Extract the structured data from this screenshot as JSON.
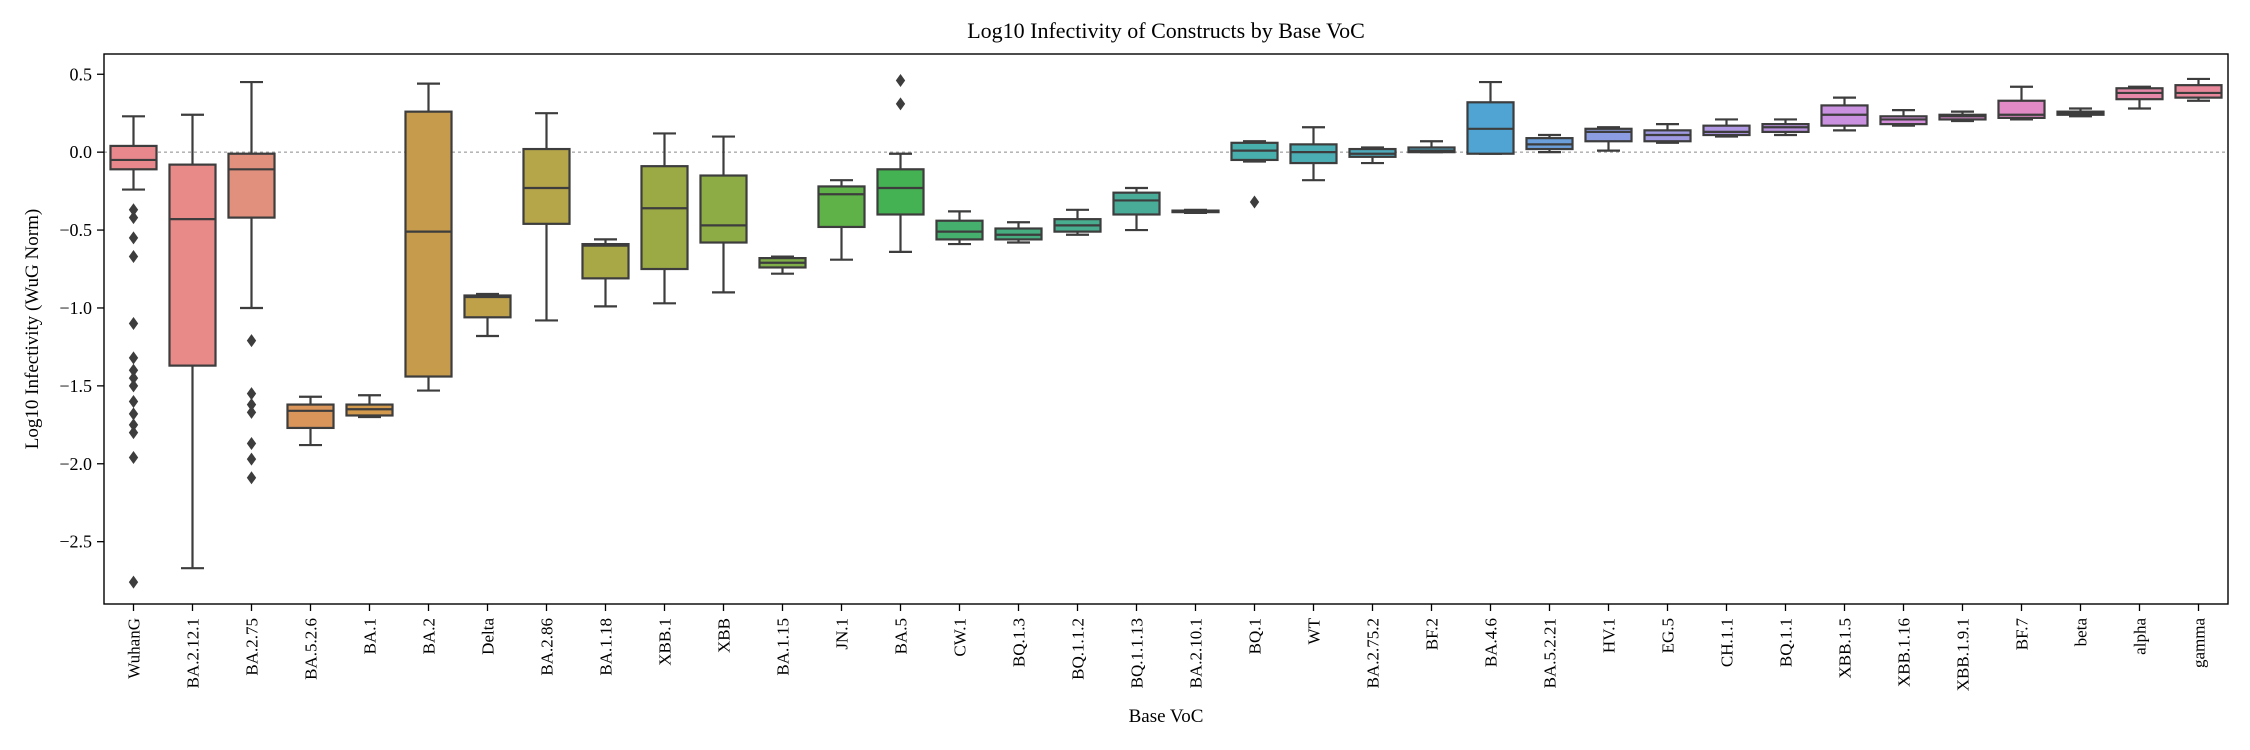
{
  "chart_data": {
    "type": "box",
    "title": "Log10 Infectivity of Constructs by Base VoC",
    "xlabel": "Base VoC",
    "ylabel": "Log10 Infectivity (WuG Norm)",
    "ylim": [
      -2.9,
      0.63
    ],
    "yticks": [
      -2.5,
      -2.0,
      -1.5,
      -1.0,
      -0.5,
      0.0,
      0.5
    ],
    "ytick_labels": [
      "−2.5",
      "−2.0",
      "−1.5",
      "−1.0",
      "−0.5",
      "0.0",
      "0.5"
    ],
    "reference_line_y": 0.0,
    "grid": false,
    "legend": "none",
    "categories": [
      "WuhanG",
      "BA.2.12.1",
      "BA.2.75",
      "BA.5.2.6",
      "BA.1",
      "BA.2",
      "Delta",
      "BA.2.86",
      "BA.1.18",
      "XBB.1",
      "XBB",
      "BA.1.15",
      "JN.1",
      "BA.5",
      "CW.1",
      "BQ.1.3",
      "BQ.1.1.2",
      "BQ.1.1.13",
      "BA.2.10.1",
      "BQ.1",
      "WT",
      "BA.2.75.2",
      "BF.2",
      "BA.4.6",
      "BA.5.2.21",
      "HV.1",
      "EG.5",
      "CH.1.1",
      "BQ.1.1",
      "XBB.1.5",
      "XBB.1.16",
      "XBB.1.9.1",
      "BF.7",
      "beta",
      "alpha",
      "gamma"
    ],
    "boxes": [
      {
        "whislo": -0.24,
        "q1": -0.11,
        "med": -0.05,
        "q3": 0.04,
        "whishi": 0.23,
        "fliers": [
          -0.37,
          -0.42,
          -0.55,
          -0.67,
          -1.1,
          -1.32,
          -1.4,
          -1.45,
          -1.5,
          -1.6,
          -1.68,
          -1.75,
          -1.8,
          -1.96,
          -2.76
        ],
        "color": "#E8878C"
      },
      {
        "whislo": -2.67,
        "q1": -1.37,
        "med": -0.43,
        "q3": -0.08,
        "whishi": 0.24,
        "fliers": [],
        "color": "#E88A88"
      },
      {
        "whislo": -1.0,
        "q1": -0.42,
        "med": -0.11,
        "q3": -0.01,
        "whishi": 0.45,
        "fliers": [
          -1.21,
          -1.55,
          -1.62,
          -1.67,
          -1.87,
          -1.97,
          -2.09
        ],
        "color": "#E0907D"
      },
      {
        "whislo": -1.88,
        "q1": -1.77,
        "med": -1.66,
        "q3": -1.62,
        "whishi": -1.57,
        "fliers": [],
        "color": "#D9955A"
      },
      {
        "whislo": -1.7,
        "q1": -1.69,
        "med": -1.65,
        "q3": -1.62,
        "whishi": -1.56,
        "fliers": [],
        "color": "#D39A4E"
      },
      {
        "whislo": -1.53,
        "q1": -1.44,
        "med": -0.51,
        "q3": 0.26,
        "whishi": 0.44,
        "fliers": [],
        "color": "#C69C4C"
      },
      {
        "whislo": -1.18,
        "q1": -1.06,
        "med": -0.93,
        "q3": -0.92,
        "whishi": -0.91,
        "fliers": [],
        "color": "#BFA14A"
      },
      {
        "whislo": -1.08,
        "q1": -0.46,
        "med": -0.23,
        "q3": 0.02,
        "whishi": 0.25,
        "fliers": [],
        "color": "#B5A64A"
      },
      {
        "whislo": -0.99,
        "q1": -0.81,
        "med": -0.6,
        "q3": -0.59,
        "whishi": -0.56,
        "fliers": [],
        "color": "#A9A847"
      },
      {
        "whislo": -0.97,
        "q1": -0.75,
        "med": -0.36,
        "q3": -0.09,
        "whishi": 0.12,
        "fliers": [],
        "color": "#9CAA45"
      },
      {
        "whislo": -0.9,
        "q1": -0.58,
        "med": -0.47,
        "q3": -0.15,
        "whishi": 0.1,
        "fliers": [],
        "color": "#8EAC46"
      },
      {
        "whislo": -0.78,
        "q1": -0.74,
        "med": -0.71,
        "q3": -0.68,
        "whishi": -0.67,
        "fliers": [],
        "color": "#80AE48"
      },
      {
        "whislo": -0.69,
        "q1": -0.48,
        "med": -0.27,
        "q3": -0.22,
        "whishi": -0.18,
        "fliers": [],
        "color": "#5FB247"
      },
      {
        "whislo": -0.64,
        "q1": -0.4,
        "med": -0.23,
        "q3": -0.11,
        "whishi": -0.01,
        "fliers": [
          0.31,
          0.46
        ],
        "color": "#44B152"
      },
      {
        "whislo": -0.59,
        "q1": -0.56,
        "med": -0.51,
        "q3": -0.44,
        "whishi": -0.38,
        "fliers": [],
        "color": "#45AF6E"
      },
      {
        "whislo": -0.58,
        "q1": -0.56,
        "med": -0.53,
        "q3": -0.49,
        "whishi": -0.45,
        "fliers": [],
        "color": "#46AD80"
      },
      {
        "whislo": -0.53,
        "q1": -0.51,
        "med": -0.47,
        "q3": -0.43,
        "whishi": -0.37,
        "fliers": [],
        "color": "#47AD8E"
      },
      {
        "whislo": -0.5,
        "q1": -0.4,
        "med": -0.31,
        "q3": -0.26,
        "whishi": -0.23,
        "fliers": [],
        "color": "#49AC98"
      },
      {
        "whislo": -0.39,
        "q1": -0.385,
        "med": -0.38,
        "q3": -0.375,
        "whishi": -0.37,
        "fliers": [],
        "color": "#4AACA2"
      },
      {
        "whislo": -0.06,
        "q1": -0.05,
        "med": 0.01,
        "q3": 0.06,
        "whishi": 0.07,
        "fliers": [
          -0.32
        ],
        "color": "#48AFAC"
      },
      {
        "whislo": -0.18,
        "q1": -0.07,
        "med": 0.0,
        "q3": 0.05,
        "whishi": 0.16,
        "fliers": [],
        "color": "#4AAEB4"
      },
      {
        "whislo": -0.07,
        "q1": -0.03,
        "med": -0.01,
        "q3": 0.02,
        "whishi": 0.03,
        "fliers": [],
        "color": "#4CAABB"
      },
      {
        "whislo": 0.0,
        "q1": 0.0,
        "med": 0.01,
        "q3": 0.03,
        "whishi": 0.07,
        "fliers": [],
        "color": "#4EA7C2"
      },
      {
        "whislo": -0.01,
        "q1": -0.01,
        "med": 0.15,
        "q3": 0.32,
        "whishi": 0.45,
        "fliers": [],
        "color": "#4FA4D3"
      },
      {
        "whislo": 0.0,
        "q1": 0.02,
        "med": 0.05,
        "q3": 0.09,
        "whishi": 0.11,
        "fliers": [],
        "color": "#6B9FDB"
      },
      {
        "whislo": 0.01,
        "q1": 0.07,
        "med": 0.13,
        "q3": 0.15,
        "whishi": 0.16,
        "fliers": [],
        "color": "#8C9DE1"
      },
      {
        "whislo": 0.06,
        "q1": 0.07,
        "med": 0.11,
        "q3": 0.14,
        "whishi": 0.18,
        "fliers": [],
        "color": "#9F9AE2"
      },
      {
        "whislo": 0.1,
        "q1": 0.11,
        "med": 0.13,
        "q3": 0.17,
        "whishi": 0.21,
        "fliers": [],
        "color": "#B097E3"
      },
      {
        "whislo": 0.11,
        "q1": 0.13,
        "med": 0.16,
        "q3": 0.18,
        "whishi": 0.21,
        "fliers": [],
        "color": "#BD94E2"
      },
      {
        "whislo": 0.14,
        "q1": 0.17,
        "med": 0.24,
        "q3": 0.3,
        "whishi": 0.35,
        "fliers": [],
        "color": "#C991E0"
      },
      {
        "whislo": 0.17,
        "q1": 0.18,
        "med": 0.21,
        "q3": 0.23,
        "whishi": 0.27,
        "fliers": [],
        "color": "#D48EDC"
      },
      {
        "whislo": 0.2,
        "q1": 0.21,
        "med": 0.23,
        "q3": 0.24,
        "whishi": 0.26,
        "fliers": [],
        "color": "#DD8CD3"
      },
      {
        "whislo": 0.21,
        "q1": 0.22,
        "med": 0.24,
        "q3": 0.33,
        "whishi": 0.42,
        "fliers": [],
        "color": "#E28AC6"
      },
      {
        "whislo": 0.23,
        "q1": 0.24,
        "med": 0.25,
        "q3": 0.26,
        "whishi": 0.28,
        "fliers": [],
        "color": "#E589B8"
      },
      {
        "whislo": 0.28,
        "q1": 0.34,
        "med": 0.38,
        "q3": 0.41,
        "whishi": 0.42,
        "fliers": [],
        "color": "#E788AA"
      },
      {
        "whislo": 0.33,
        "q1": 0.35,
        "med": 0.38,
        "q3": 0.43,
        "whishi": 0.47,
        "fliers": [],
        "color": "#E8879A"
      }
    ]
  }
}
